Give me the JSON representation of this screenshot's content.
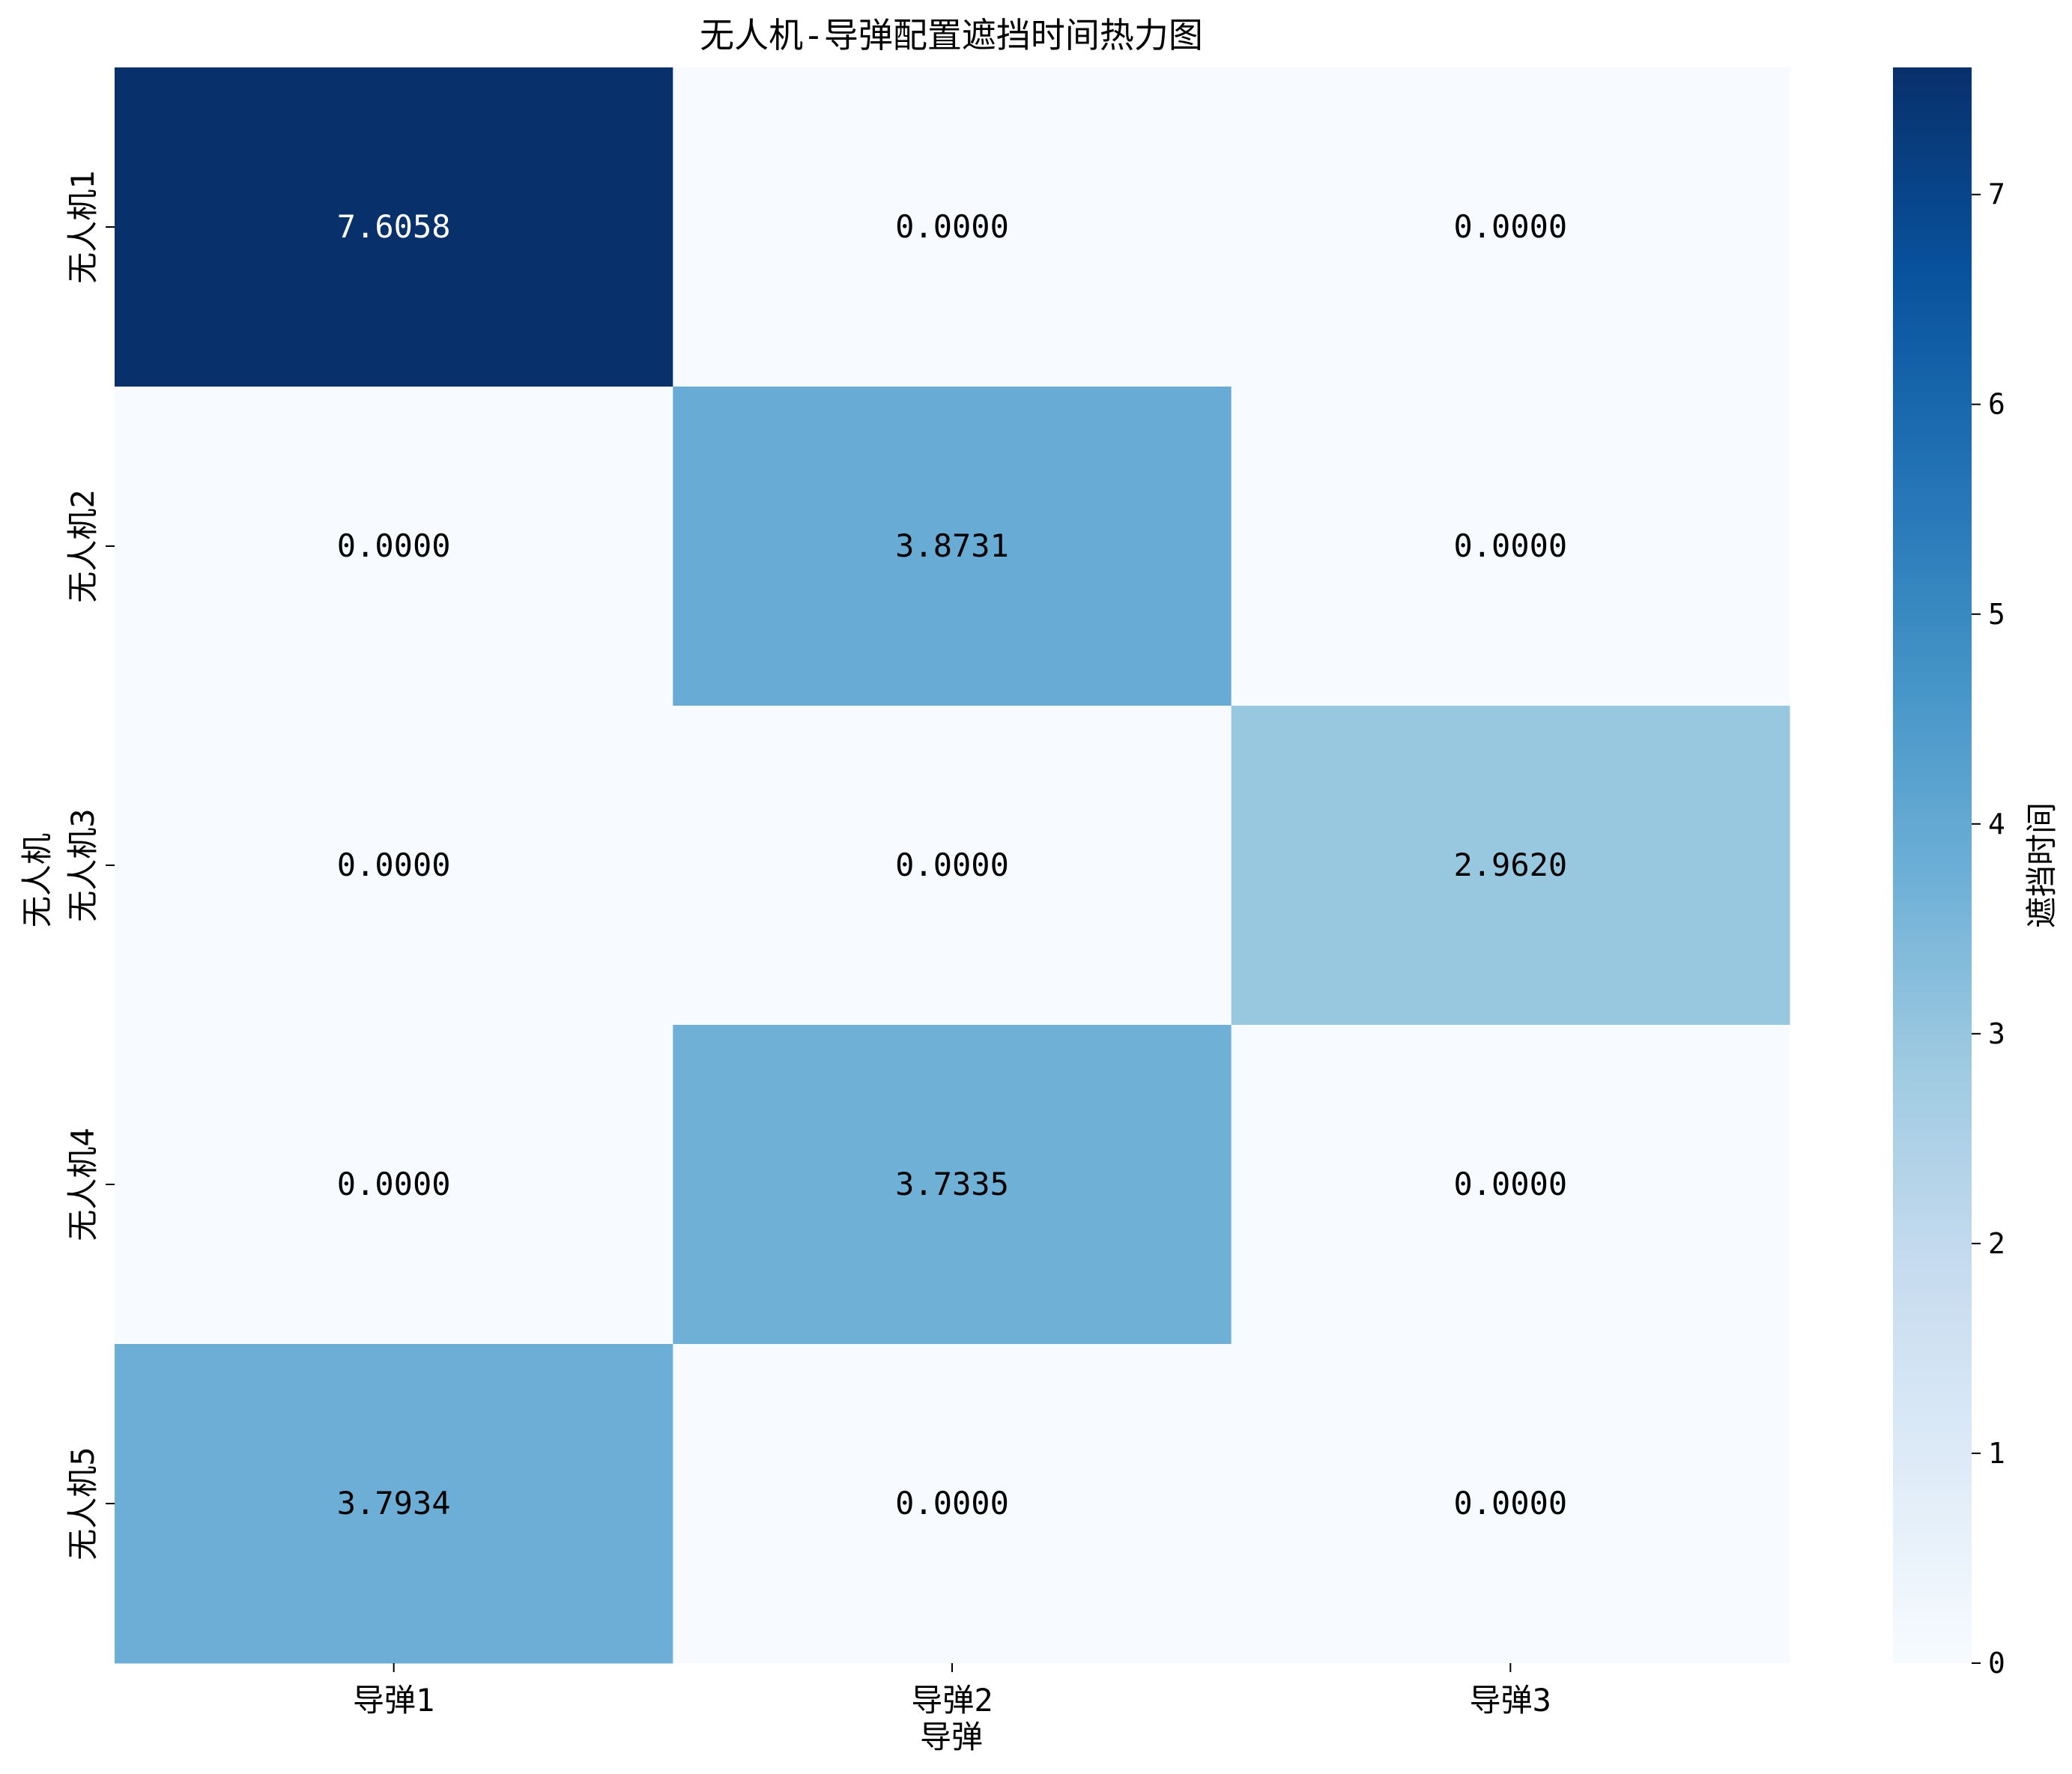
{
  "chart_data": {
    "type": "heatmap",
    "title": "无人机-导弹配置遮挡时间热力图",
    "xlabel": "导弹",
    "ylabel": "无人机",
    "x_categories": [
      "导弹1",
      "导弹2",
      "导弹3"
    ],
    "y_categories": [
      "无人机1",
      "无人机2",
      "无人机3",
      "无人机4",
      "无人机5"
    ],
    "values": [
      [
        7.6058,
        0.0,
        0.0
      ],
      [
        0.0,
        3.8731,
        0.0
      ],
      [
        0.0,
        0.0,
        2.962
      ],
      [
        0.0,
        3.7335,
        0.0
      ],
      [
        3.7934,
        0.0,
        0.0
      ]
    ],
    "value_format": "0.0000",
    "colormap": "Blues",
    "colorbar": {
      "label": "遮挡时间",
      "range": [
        0,
        7.6058
      ],
      "ticks": [
        0,
        1,
        2,
        3,
        4,
        5,
        6,
        7
      ]
    },
    "grid": false,
    "legend": "colorbar-right"
  }
}
